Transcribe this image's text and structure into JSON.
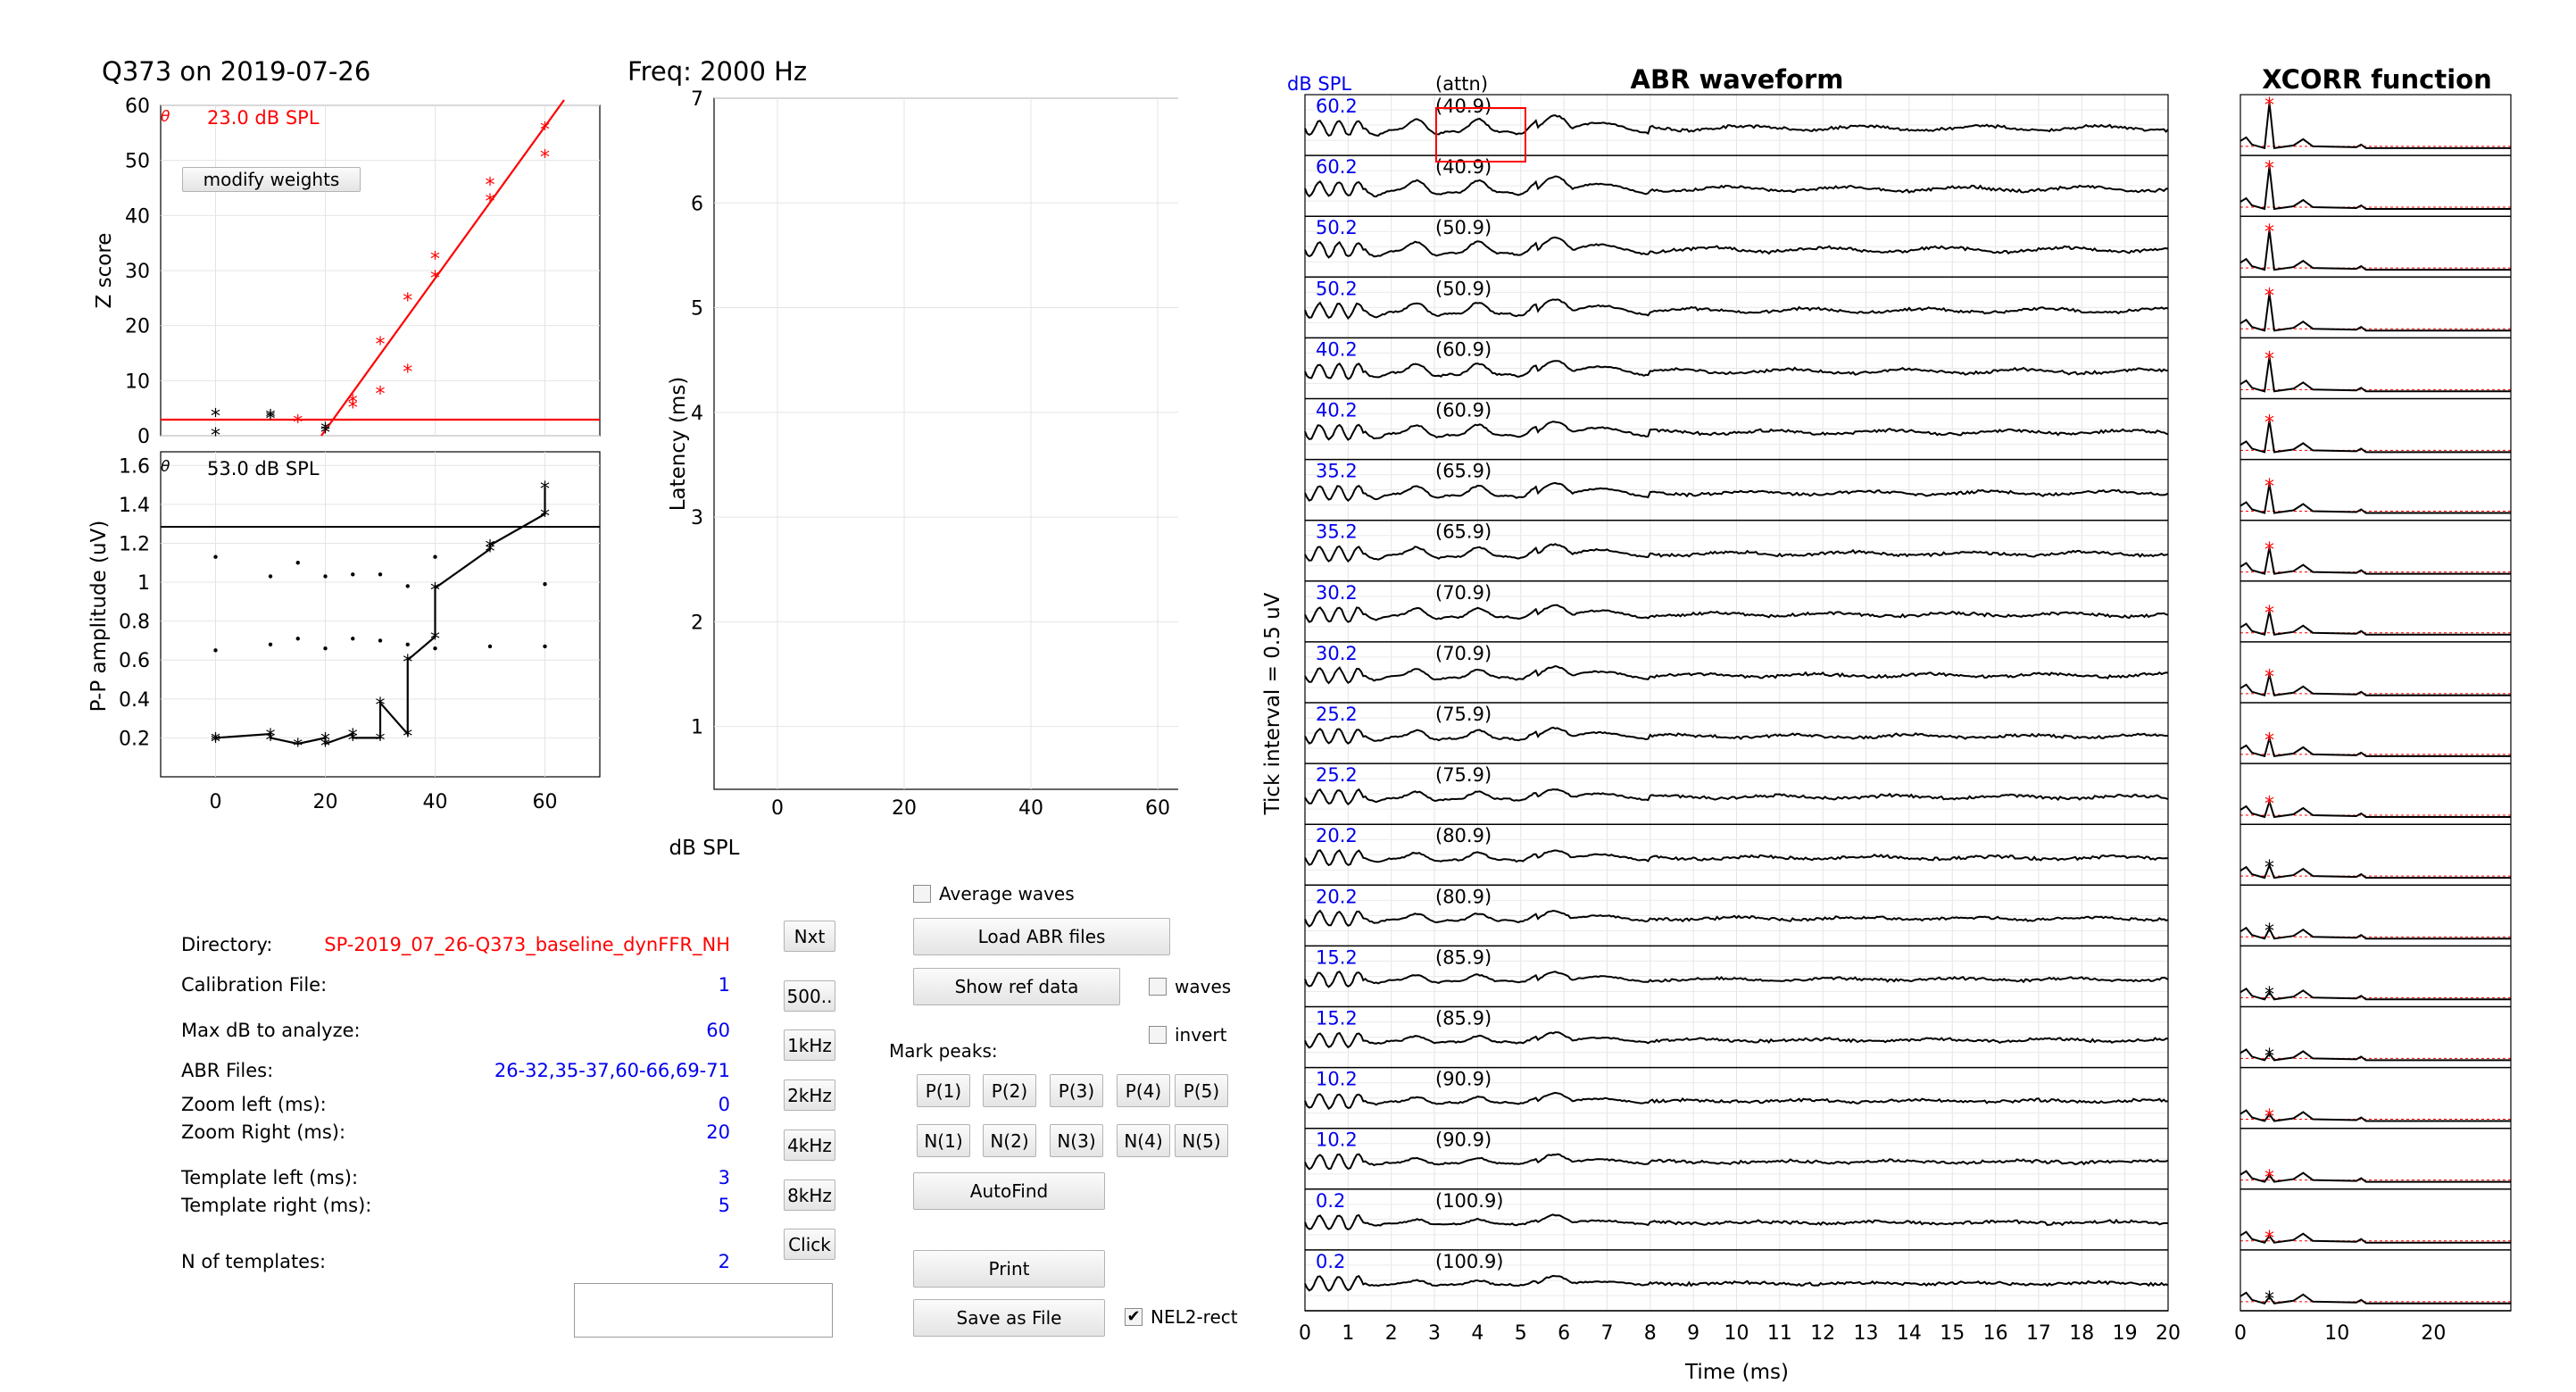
{
  "window": {
    "fig_title": "Q373 on 2019-07-26",
    "freq_title": "Freq: 2000 Hz"
  },
  "zscore_plot": {
    "ylabel": "Z score",
    "theta": "θ",
    "thresh_text": "23.0 dB SPL",
    "modify_label": "modify weights",
    "yticks": [
      "60",
      "50",
      "40",
      "30",
      "20",
      "10",
      "0"
    ],
    "colors": {
      "fit": "#ff0000",
      "points_red": "#ff0000",
      "points_black": "#000000"
    }
  },
  "pp_plot": {
    "ylabel": "P-P amplitude (uV)",
    "theta": "θ",
    "thresh_text": "53.0 dB SPL",
    "yticks": [
      "1.6",
      "1.4",
      "1.2",
      "1",
      "0.8",
      "0.6",
      "0.4",
      "0.2"
    ],
    "xticks": [
      "0",
      "20",
      "40",
      "60"
    ]
  },
  "latency_plot": {
    "ylabel": "Latency (ms)",
    "xlabel": "dB SPL",
    "yticks": [
      "7",
      "6",
      "5",
      "4",
      "3",
      "2",
      "1"
    ],
    "xticks": [
      "0",
      "20",
      "40",
      "60"
    ]
  },
  "info": {
    "directory_label": "Directory:",
    "directory_value": "SP-2019_07_26-Q373_baseline_dynFFR_NH",
    "calib_label": "Calibration File:",
    "calib_value": "1",
    "maxdb_label": "Max dB to analyze:",
    "maxdb_value": "60",
    "abr_label": "ABR Files:",
    "abr_value": "26-32,35-37,60-66,69-71",
    "zoom_left_label": "Zoom left (ms):",
    "zoom_left_value": "0",
    "zoom_right_label": "Zoom Right (ms):",
    "zoom_right_value": "20",
    "tpl_left_label": "Template left (ms):",
    "tpl_left_value": "3",
    "tpl_right_label": "Template right (ms):",
    "tpl_right_value": "5",
    "ntpl_label": "N of templates:",
    "ntpl_value": "2"
  },
  "freq_buttons": [
    "Nxt",
    "500..",
    "1kHz",
    "2kHz",
    "4kHz",
    "8kHz",
    "Click"
  ],
  "controls": {
    "average_waves": "Average waves",
    "load_abr": "Load ABR files",
    "show_ref": "Show ref data",
    "waves": "waves",
    "invert": "invert",
    "mark_peaks": "Mark peaks:",
    "p_buttons": [
      "P(1)",
      "P(2)",
      "P(3)",
      "P(4)",
      "P(5)"
    ],
    "n_buttons": [
      "N(1)",
      "N(2)",
      "N(3)",
      "N(4)",
      "N(5)"
    ],
    "autofind": "AutoFind",
    "print": "Print",
    "save_as_file": "Save as File",
    "nel2_rect": "NEL2-rect",
    "nel2_checked": "✔"
  },
  "abr_plot": {
    "title": "ABR waveform",
    "top_left": "dB SPL",
    "top_attn": "(attn)",
    "ylabel": "Tick interval = 0.5 uV",
    "xlabel": "Time (ms)",
    "xticks": [
      "0",
      "1",
      "2",
      "3",
      "4",
      "5",
      "6",
      "7",
      "8",
      "9",
      "10",
      "11",
      "12",
      "13",
      "14",
      "15",
      "16",
      "17",
      "18",
      "19",
      "20"
    ],
    "rows": [
      {
        "spl": "60.2",
        "attn": "(40.9)"
      },
      {
        "spl": "60.2",
        "attn": "(40.9)"
      },
      {
        "spl": "50.2",
        "attn": "(50.9)"
      },
      {
        "spl": "50.2",
        "attn": "(50.9)"
      },
      {
        "spl": "40.2",
        "attn": "(60.9)"
      },
      {
        "spl": "40.2",
        "attn": "(60.9)"
      },
      {
        "spl": "35.2",
        "attn": "(65.9)"
      },
      {
        "spl": "35.2",
        "attn": "(65.9)"
      },
      {
        "spl": "30.2",
        "attn": "(70.9)"
      },
      {
        "spl": "30.2",
        "attn": "(70.9)"
      },
      {
        "spl": "25.2",
        "attn": "(75.9)"
      },
      {
        "spl": "25.2",
        "attn": "(75.9)"
      },
      {
        "spl": "20.2",
        "attn": "(80.9)"
      },
      {
        "spl": "20.2",
        "attn": "(80.9)"
      },
      {
        "spl": "15.2",
        "attn": "(85.9)"
      },
      {
        "spl": "15.2",
        "attn": "(85.9)"
      },
      {
        "spl": "10.2",
        "attn": "(90.9)"
      },
      {
        "spl": "10.2",
        "attn": "(90.9)"
      },
      {
        "spl": "0.2",
        "attn": "(100.9)"
      },
      {
        "spl": "0.2",
        "attn": "(100.9)"
      }
    ]
  },
  "xcorr_plot": {
    "title": "XCORR function",
    "xticks": [
      "0",
      "10",
      "20"
    ],
    "peak_colors": [
      "red",
      "red",
      "red",
      "red",
      "red",
      "red",
      "red",
      "red",
      "red",
      "red",
      "red",
      "red",
      "black",
      "black",
      "black",
      "black",
      "red",
      "red",
      "red",
      "black"
    ]
  }
}
